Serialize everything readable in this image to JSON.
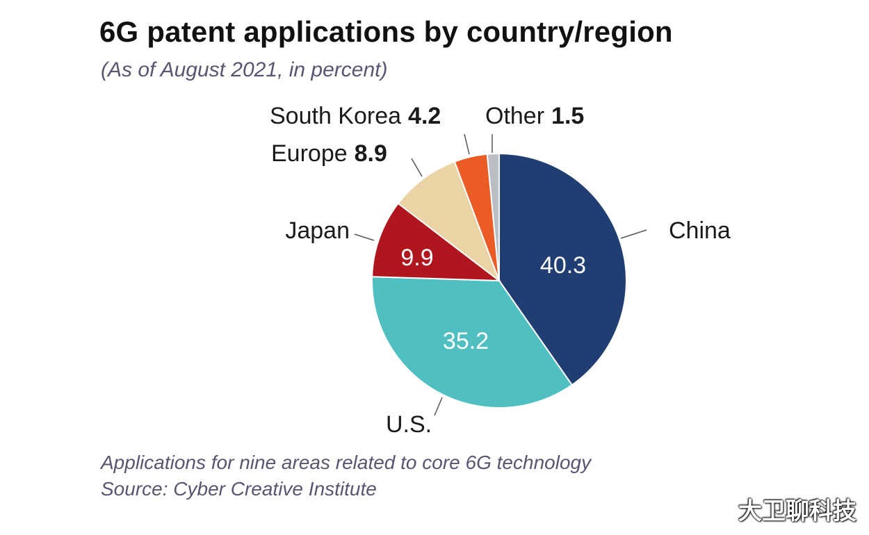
{
  "title": "6G patent applications by country/region",
  "subtitle": "(As of August 2021, in percent)",
  "notes": {
    "line1": "Applications for nine areas related to core 6G technology",
    "line2": "Source: Cyber Creative Institute"
  },
  "watermark": "大卫聊科技",
  "chart_data": {
    "type": "pie",
    "title": "6G patent applications by country/region",
    "subtitle": "(As of August 2021, in percent)",
    "slices": [
      {
        "label": "China",
        "value": 40.3,
        "value_label": "40.3",
        "color": "#213e73",
        "value_color": "#ffffff"
      },
      {
        "label": "U.S.",
        "value": 35.2,
        "value_label": "35.2",
        "color": "#4fbfc2",
        "value_color": "#ffffff"
      },
      {
        "label": "Japan",
        "value": 9.9,
        "value_label": "9.9",
        "color": "#b0161e",
        "value_color": "#ffffff"
      },
      {
        "label": "Europe",
        "value": 8.9,
        "value_label": "8.9",
        "color": "#ead3a5",
        "value_color": "#111111"
      },
      {
        "label": "South Korea",
        "value": 4.2,
        "value_label": "4.2",
        "color": "#ea5b25",
        "value_color": "#111111"
      },
      {
        "label": "Other",
        "value": 1.5,
        "value_label": "1.5",
        "color": "#b9bec4",
        "value_color": "#111111"
      }
    ]
  }
}
